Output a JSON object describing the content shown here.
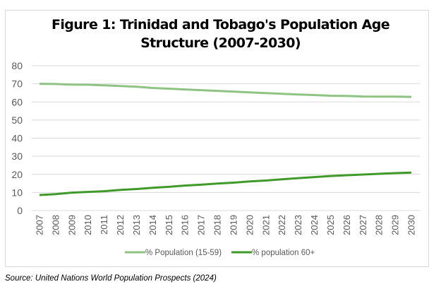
{
  "chart_data": {
    "type": "line",
    "title": "Figure 1: Trinidad and Tobago's Population Age Structure (2007-2030)",
    "title_lines": [
      "Figure 1: Trinidad and Tobago's Population Age",
      "Structure (2007-2030)"
    ],
    "xlabel": "",
    "ylabel": "",
    "ylim": [
      0,
      80
    ],
    "yticks": [
      "0",
      "10",
      "20",
      "30",
      "40",
      "50",
      "60",
      "70",
      "80"
    ],
    "grid": true,
    "legend_position": "bottom",
    "categories": [
      "2007",
      "2008",
      "2009",
      "2010",
      "2011",
      "2012",
      "2013",
      "2014",
      "2015",
      "2016",
      "2017",
      "2018",
      "2019",
      "2020",
      "2021",
      "2022",
      "2023",
      "2024",
      "2025",
      "2026",
      "2027",
      "2028",
      "2029",
      "2030"
    ],
    "series": [
      {
        "name": "% Population (15-59)",
        "color": "#8fc383",
        "values": [
          70.0,
          69.9,
          69.6,
          69.5,
          69.2,
          68.8,
          68.4,
          67.7,
          67.3,
          66.9,
          66.5,
          66.1,
          65.7,
          65.3,
          64.9,
          64.5,
          64.1,
          63.8,
          63.4,
          63.3,
          63.0,
          62.9,
          62.9,
          62.8
        ]
      },
      {
        "name": "% population 60+",
        "color": "#3f9a2a",
        "values": [
          8.6,
          9.1,
          9.9,
          10.3,
          10.7,
          11.4,
          11.9,
          12.6,
          13.1,
          13.8,
          14.3,
          14.9,
          15.4,
          16.1,
          16.6,
          17.3,
          17.9,
          18.5,
          19.1,
          19.5,
          19.9,
          20.3,
          20.7,
          21.0
        ]
      }
    ]
  },
  "source": "Source: United Nations World Population Prospects (2024)"
}
